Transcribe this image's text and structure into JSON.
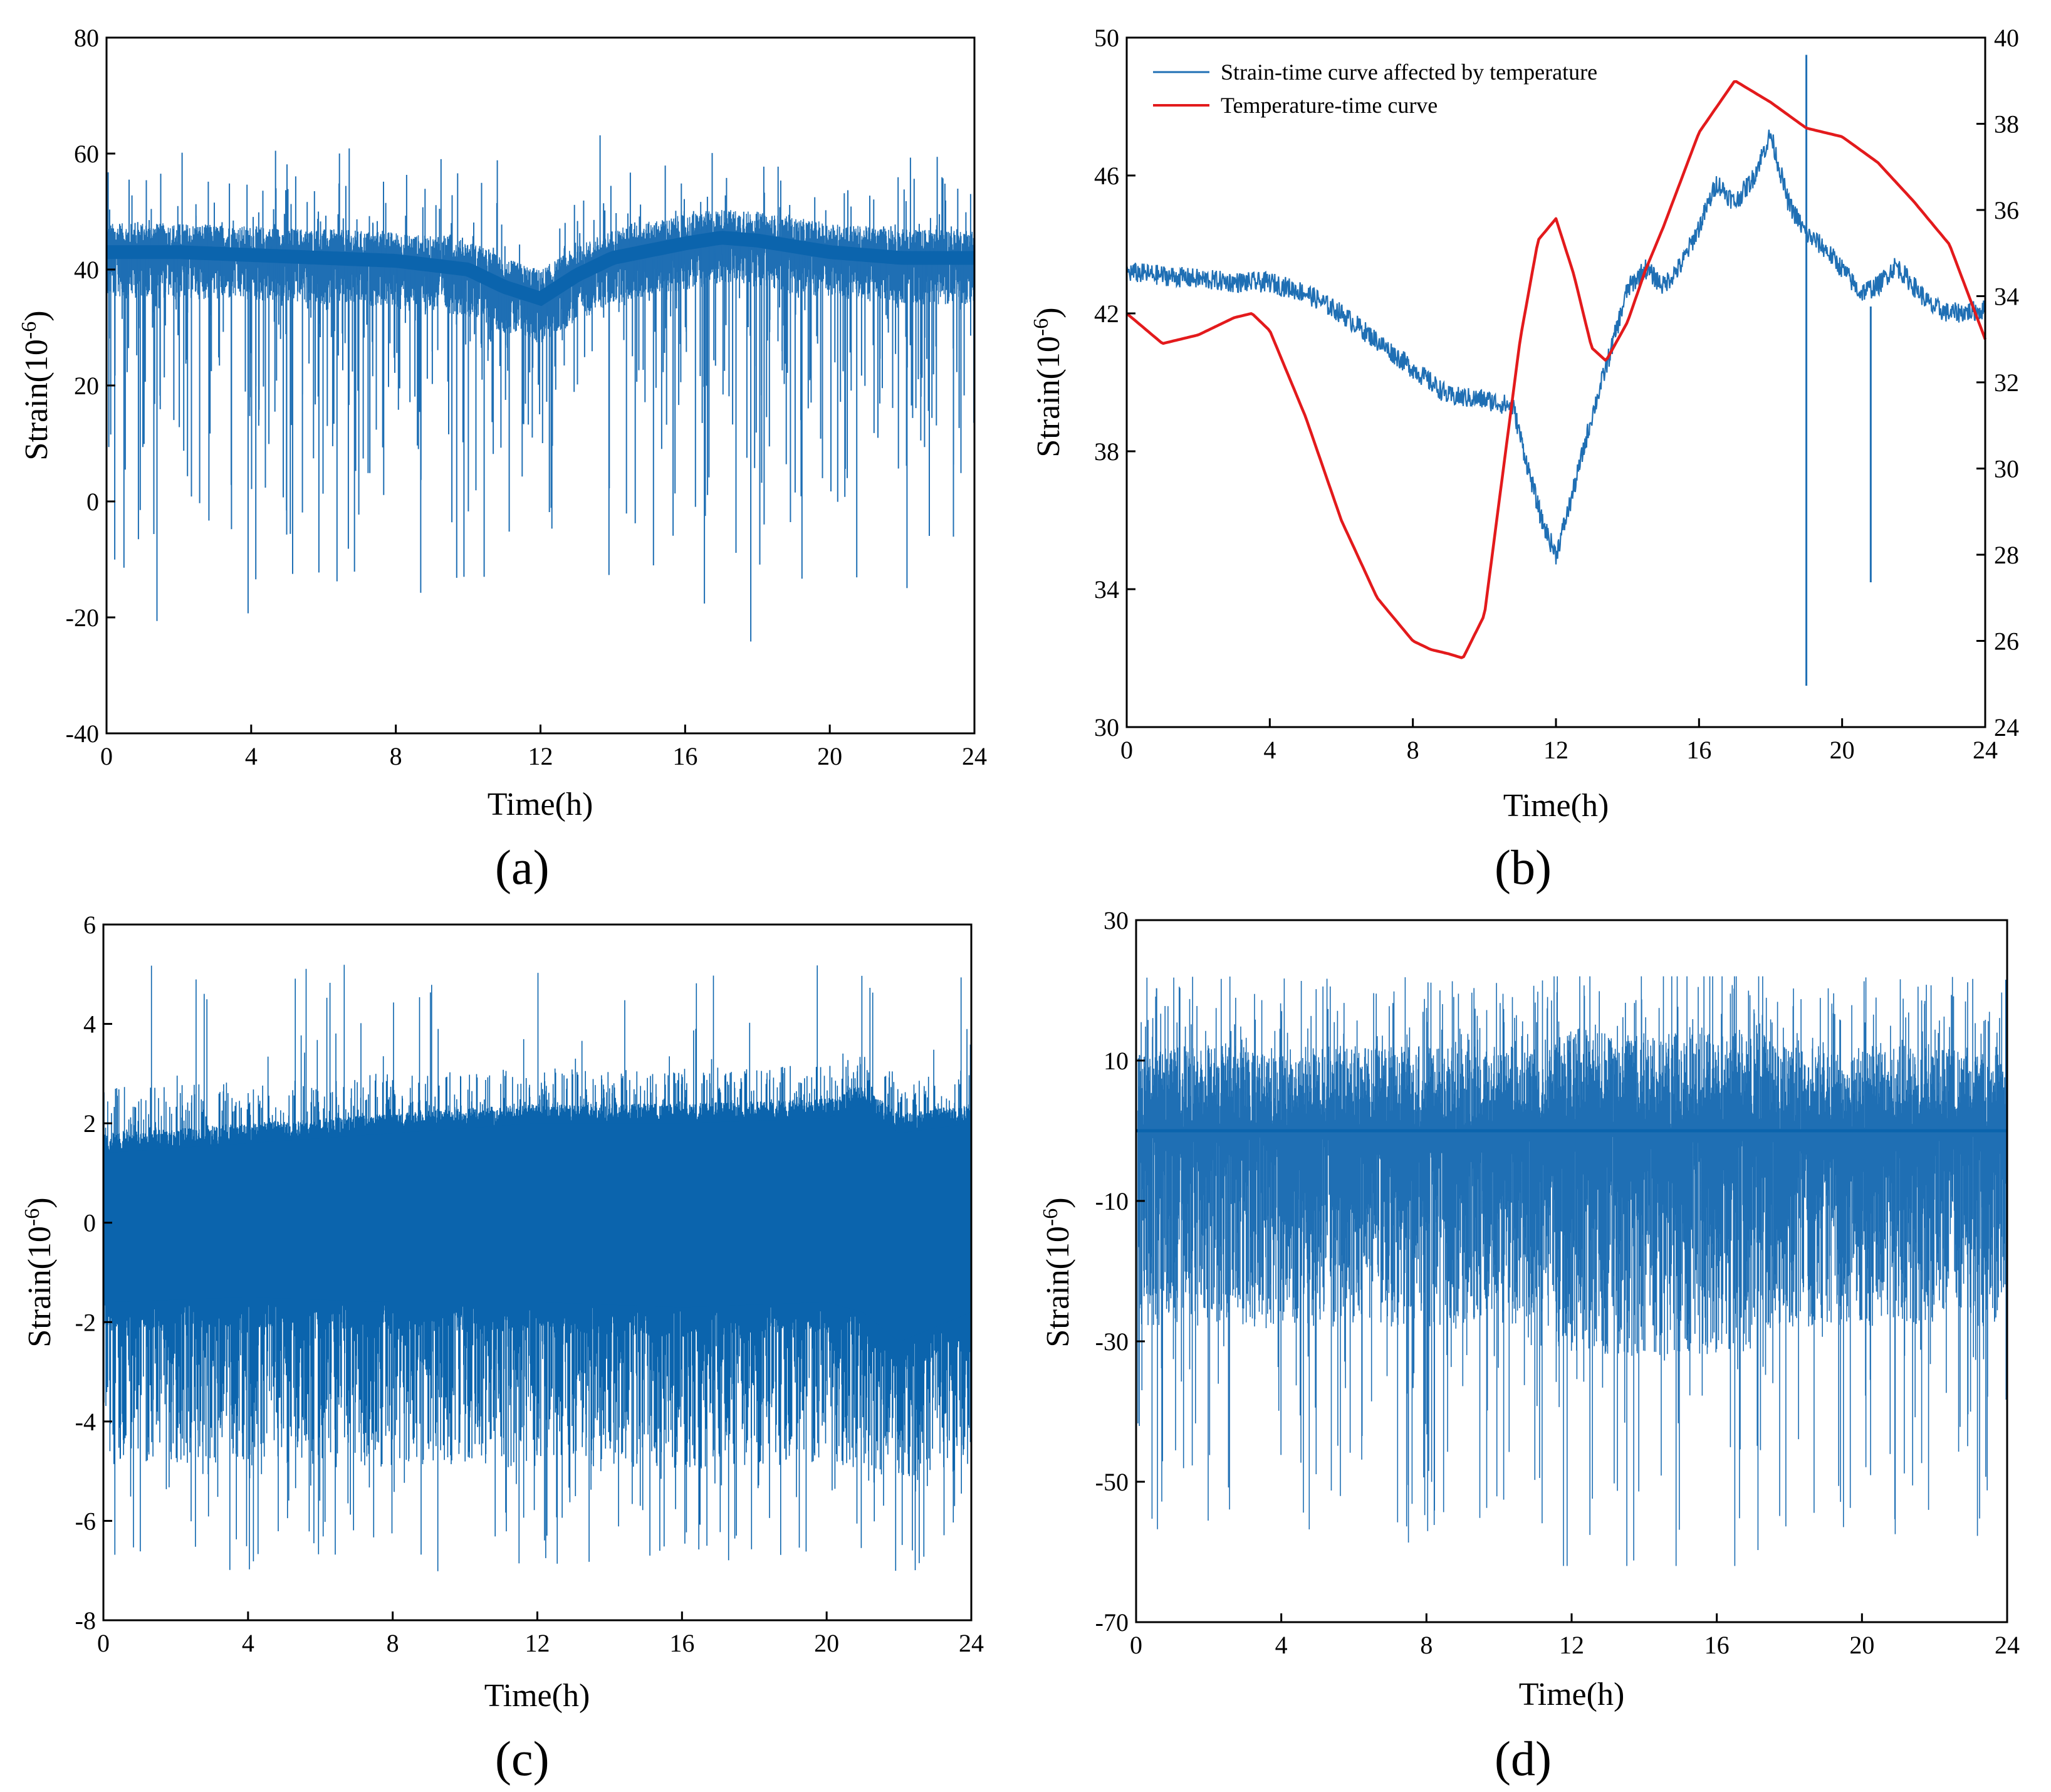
{
  "figure": {
    "colors": {
      "strain": "#1f6fb4",
      "strain_dense": "#0b64ad",
      "temperature": "#e31a1c",
      "axis": "#000000"
    }
  },
  "chart_data": [
    {
      "id": "a",
      "type": "line",
      "panel_label": "(a)",
      "xlabel": "Time(h)",
      "ylabel_main": "Strain(10",
      "ylabel_sup": "-6",
      "ylabel_end": ")",
      "xlim": [
        0,
        24
      ],
      "ylim": [
        -40,
        80
      ],
      "xticks": [
        0,
        4,
        8,
        12,
        16,
        20,
        24
      ],
      "yticks": [
        -40,
        -20,
        0,
        20,
        40,
        60,
        80
      ],
      "series": [
        {
          "name": "Strain",
          "color": "#1f6fb4",
          "baseline_x": [
            0,
            2,
            4,
            6,
            8,
            10,
            11,
            12,
            13,
            14,
            16,
            17,
            18,
            20,
            22,
            24
          ],
          "baseline_y": [
            43,
            43,
            42.5,
            42,
            41.5,
            40,
            37,
            35,
            39,
            42,
            44.5,
            45.5,
            45,
            43,
            42,
            42
          ],
          "noise_band_up": 5,
          "noise_band_down": 8,
          "spike_max": 64,
          "spike_min": -25
        }
      ]
    },
    {
      "id": "b",
      "type": "line",
      "panel_label": "(b)",
      "xlabel": "Time(h)",
      "ylabel_main": "Strain(10",
      "ylabel_sup": "-6",
      "ylabel_end": ")",
      "xlim": [
        0,
        24
      ],
      "ylim": [
        30,
        50
      ],
      "y2lim": [
        24,
        40
      ],
      "xticks": [
        0,
        4,
        8,
        12,
        16,
        20,
        24
      ],
      "yticks": [
        30,
        34,
        38,
        42,
        46,
        50
      ],
      "y2ticks": [
        24,
        26,
        28,
        30,
        32,
        34,
        36,
        38,
        40
      ],
      "legend": [
        "Strain-time curve affected by temperature",
        "Temperature-time curve"
      ],
      "series": [
        {
          "name": "Strain-time curve affected by temperature",
          "axis": "left",
          "color": "#1f6fb4",
          "x": [
            0,
            1,
            2,
            3,
            4,
            5,
            6,
            7,
            8,
            9,
            10,
            10.8,
            11.2,
            11.6,
            12,
            12.4,
            13,
            13.5,
            14,
            14.5,
            15,
            15.5,
            16,
            16.5,
            17,
            17.5,
            18,
            18.5,
            19,
            19.5,
            20,
            20.5,
            21,
            21.5,
            22,
            22.5,
            23,
            24
          ],
          "y": [
            43.2,
            43.1,
            43.0,
            42.9,
            42.9,
            42.6,
            42.0,
            41.2,
            40.4,
            39.6,
            39.5,
            39.3,
            37.6,
            36.0,
            35.0,
            36.5,
            39.0,
            40.8,
            42.7,
            43.3,
            42.8,
            43.4,
            44.5,
            45.8,
            45.2,
            45.9,
            47.2,
            45.2,
            44.3,
            43.9,
            43.3,
            42.6,
            42.8,
            43.4,
            42.8,
            42.2,
            42.0,
            42.1
          ]
        },
        {
          "name": "Temperature-time curve",
          "axis": "right",
          "color": "#e31a1c",
          "x": [
            0,
            1,
            2,
            3,
            3.5,
            4,
            5,
            6,
            7,
            8,
            8.5,
            9,
            9.4,
            10,
            10.5,
            11,
            11.5,
            12,
            12.5,
            13,
            13.4,
            14,
            14.5,
            15,
            16,
            17,
            18,
            19,
            20,
            21,
            22,
            23,
            24
          ],
          "y": [
            33.6,
            32.9,
            33.1,
            33.5,
            33.6,
            33.2,
            31.2,
            28.8,
            27.0,
            26.0,
            25.8,
            25.7,
            25.6,
            26.6,
            29.8,
            33.0,
            35.3,
            35.8,
            34.5,
            32.8,
            32.5,
            33.4,
            34.6,
            35.6,
            37.8,
            39.0,
            38.5,
            37.9,
            37.7,
            37.1,
            36.2,
            35.2,
            33.0
          ]
        }
      ],
      "spikes": [
        {
          "x": 19,
          "top": 49.5,
          "bottom": 31.2
        },
        {
          "x": 20.8,
          "top": 42.2,
          "bottom": 34.2
        }
      ]
    },
    {
      "id": "c",
      "type": "line",
      "panel_label": "(c)",
      "xlabel": "Time(h)",
      "ylabel_main": "Strain(10",
      "ylabel_sup": "-6",
      "ylabel_end": ")",
      "xlim": [
        0,
        24
      ],
      "ylim": [
        -8,
        6
      ],
      "xticks": [
        0,
        4,
        8,
        12,
        16,
        20,
        24
      ],
      "yticks": [
        -8,
        -6,
        -4,
        -2,
        0,
        2,
        4,
        6
      ],
      "series": [
        {
          "name": "Strain",
          "color": "#0b64ad",
          "band_x": [
            0,
            4,
            8,
            12,
            16,
            20,
            21,
            22,
            24
          ],
          "band_top": [
            1.4,
            1.6,
            1.8,
            2.0,
            2.0,
            2.1,
            2.4,
            1.8,
            2.0
          ],
          "band_bottom": [
            -1.6,
            -1.5,
            -1.6,
            -1.6,
            -1.7,
            -1.6,
            -1.8,
            -2.4,
            -1.8
          ],
          "spike_max": 5.2,
          "spike_min": -7.1
        }
      ]
    },
    {
      "id": "d",
      "type": "line",
      "panel_label": "(d)",
      "xlabel": "Time(h)",
      "ylabel_main": "Strain(10",
      "ylabel_sup": "-6",
      "ylabel_end": ")",
      "xlim": [
        0,
        24
      ],
      "ylim": [
        -70,
        30
      ],
      "xticks": [
        0,
        4,
        8,
        12,
        16,
        20,
        24
      ],
      "yticks": [
        -70,
        -50,
        -30,
        -10,
        10,
        30
      ],
      "series": [
        {
          "name": "Strain",
          "color": "#1f6fb4",
          "baseline": 0,
          "spike_max": 22,
          "spike_min": -62
        }
      ]
    }
  ]
}
